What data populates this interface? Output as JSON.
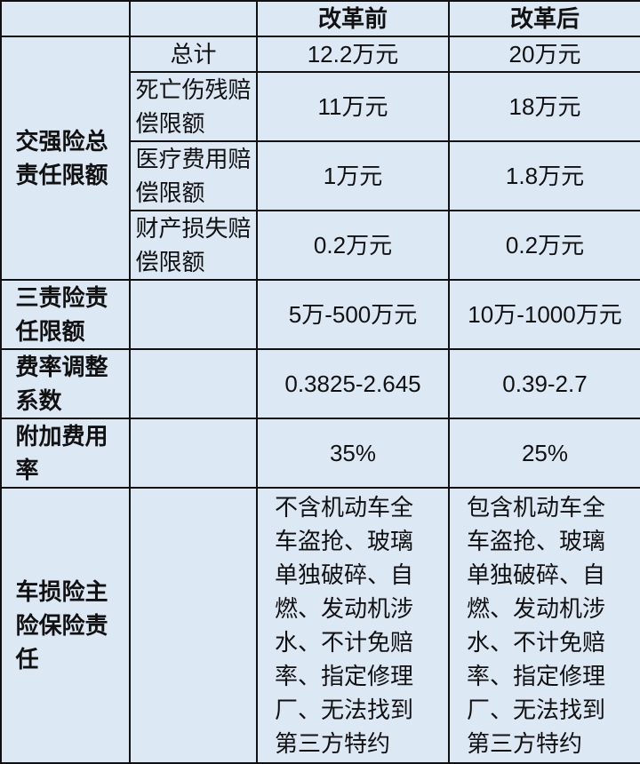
{
  "header": {
    "col1": "",
    "col2": "",
    "before": "改革前",
    "after": "改革后"
  },
  "rows": {
    "jqx": {
      "label": "交强险总责任限额",
      "sub": [
        {
          "label": "总计",
          "before": "12.2万元",
          "after": "20万元"
        },
        {
          "label": "死亡伤残赔偿限额",
          "before": "11万元",
          "after": "18万元"
        },
        {
          "label": "医疗费用赔偿限额",
          "before": "1万元",
          "after": "1.8万元"
        },
        {
          "label": "财产损失赔偿限额",
          "before": "0.2万元",
          "after": "0.2万元"
        }
      ]
    },
    "szx": {
      "label": "三责险责任限额",
      "before": "5万-500万元",
      "after": "10万-1000万元"
    },
    "fl": {
      "label": "费率调整系数",
      "before": "0.3825-2.645",
      "after": "0.39-2.7"
    },
    "fj": {
      "label": "附加费用率",
      "before": "35%",
      "after": "25%"
    },
    "csx": {
      "label": "车损险主险保险责任",
      "before": "不含机动车全车盗抢、玻璃单独破碎、自燃、发动机涉水、不计免赔率、指定修理厂、无法找到第三方特约",
      "after": "包含机动车全车盗抢、玻璃单独破碎、自燃、发动机涉水、不计免赔率、指定修理厂、无法找到第三方特约"
    }
  }
}
